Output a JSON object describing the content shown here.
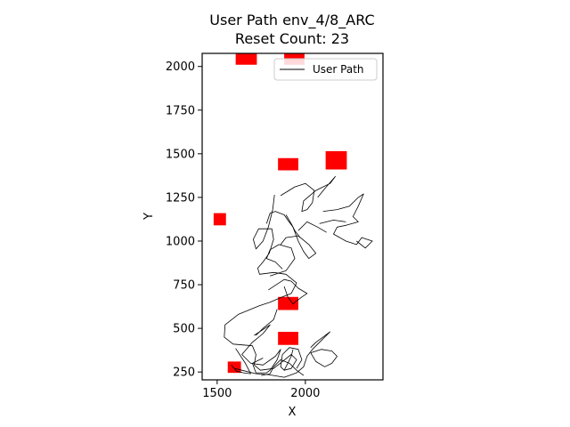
{
  "chart_data": {
    "type": "line",
    "title": "User Path env_4/8_ARC",
    "subtitle": "Reset Count: 23",
    "xlabel": "X",
    "ylabel": "Y",
    "xlim": [
      1415,
      2440
    ],
    "ylim": [
      205,
      2075
    ],
    "xticks": [
      1500,
      2000
    ],
    "yticks": [
      250,
      500,
      750,
      1000,
      1250,
      1500,
      1750,
      2000
    ],
    "grid": false,
    "legend": {
      "placement": "top-right",
      "entries": [
        {
          "label": "User Path",
          "color": "#000000"
        }
      ]
    },
    "obstacles_color": "#ff0000",
    "obstacles": [
      {
        "x": 1480,
        "y": 1090,
        "w": 70,
        "h": 70
      },
      {
        "x": 1560,
        "y": 245,
        "w": 75,
        "h": 65
      },
      {
        "x": 1605,
        "y": 2010,
        "w": 120,
        "h": 70
      },
      {
        "x": 1845,
        "y": 1405,
        "w": 115,
        "h": 70
      },
      {
        "x": 1845,
        "y": 605,
        "w": 115,
        "h": 75
      },
      {
        "x": 1845,
        "y": 405,
        "w": 115,
        "h": 75
      },
      {
        "x": 1880,
        "y": 2010,
        "w": 115,
        "h": 70
      },
      {
        "x": 2115,
        "y": 1410,
        "w": 120,
        "h": 105
      }
    ],
    "series": [
      {
        "name": "User Path",
        "color": "#000000",
        "segments": [
          [
            [
              1825,
              1265
            ],
            [
              1815,
              1180
            ],
            [
              1790,
              1080
            ],
            [
              1760,
              1000
            ],
            [
              1720,
              955
            ],
            [
              1705,
              1010
            ],
            [
              1735,
              1070
            ],
            [
              1810,
              1070
            ],
            [
              1820,
              1010
            ],
            [
              1795,
              930
            ],
            [
              1760,
              880
            ],
            [
              1730,
              845
            ],
            [
              1740,
              810
            ],
            [
              1820,
              820
            ],
            [
              1890,
              810
            ],
            [
              1950,
              760
            ],
            [
              1920,
              700
            ],
            [
              1870,
              680
            ],
            [
              1800,
              650
            ],
            [
              1740,
              630
            ],
            [
              1620,
              580
            ],
            [
              1545,
              520
            ],
            [
              1540,
              450
            ],
            [
              1590,
              410
            ],
            [
              1700,
              400
            ],
            [
              1720,
              350
            ],
            [
              1710,
              290
            ],
            [
              1745,
              260
            ],
            [
              1820,
              270
            ],
            [
              1870,
              310
            ],
            [
              1920,
              350
            ],
            [
              1950,
              320
            ],
            [
              1920,
              270
            ],
            [
              1880,
              260
            ],
            [
              1860,
              280
            ],
            [
              1870,
              350
            ],
            [
              1910,
              390
            ],
            [
              1960,
              380
            ],
            [
              1980,
              320
            ],
            [
              1950,
              270
            ]
          ],
          [
            [
              1605,
              385
            ],
            [
              1660,
              300
            ],
            [
              1690,
              240
            ],
            [
              1650,
              245
            ],
            [
              1610,
              255
            ],
            [
              1580,
              290
            ]
          ],
          [
            [
              1710,
              460
            ],
            [
              1800,
              520
            ],
            [
              1760,
              470
            ],
            [
              1700,
              420
            ],
            [
              1640,
              350
            ],
            [
              1690,
              300
            ],
            [
              1760,
              290
            ],
            [
              1830,
              340
            ],
            [
              1860,
              380
            ],
            [
              1840,
              320
            ],
            [
              1800,
              260
            ],
            [
              1780,
              245
            ],
            [
              1720,
              245
            ],
            [
              1700,
              300
            ],
            [
              1760,
              330
            ]
          ],
          [
            [
              1840,
              610
            ],
            [
              1820,
              550
            ],
            [
              1760,
              500
            ],
            [
              1720,
              460
            ]
          ],
          [
            [
              1800,
              800
            ],
            [
              1890,
              830
            ],
            [
              1940,
              900
            ],
            [
              1920,
              960
            ],
            [
              1850,
              980
            ],
            [
              1800,
              950
            ],
            [
              1780,
              900
            ],
            [
              1830,
              880
            ],
            [
              1870,
              840
            ]
          ],
          [
            [
              1860,
              980
            ],
            [
              1890,
              1020
            ],
            [
              1960,
              1030
            ],
            [
              2020,
              980
            ],
            [
              2060,
              930
            ],
            [
              2020,
              900
            ],
            [
              1990,
              940
            ],
            [
              1960,
              1000
            ],
            [
              1930,
              1080
            ],
            [
              1900,
              1120
            ],
            [
              1880,
              1150
            ],
            [
              1830,
              1170
            ],
            [
              1800,
              1160
            ],
            [
              1780,
              1100
            ]
          ],
          [
            [
              1890,
              1150
            ],
            [
              1920,
              1100
            ],
            [
              1940,
              1060
            ],
            [
              1970,
              1020
            ]
          ],
          [
            [
              1790,
              720
            ],
            [
              1850,
              760
            ],
            [
              1880,
              780
            ],
            [
              1920,
              770
            ],
            [
              1960,
              730
            ],
            [
              2010,
              700
            ],
            [
              1980,
              680
            ],
            [
              1930,
              640
            ],
            [
              1900,
              680
            ],
            [
              1880,
              740
            ]
          ],
          [
            [
              1860,
              1260
            ],
            [
              1940,
              1310
            ],
            [
              2000,
              1330
            ],
            [
              2050,
              1290
            ],
            [
              2040,
              1220
            ],
            [
              2010,
              1180
            ],
            [
              1980,
              1170
            ],
            [
              1990,
              1230
            ],
            [
              2060,
              1290
            ],
            [
              2100,
              1310
            ],
            [
              2140,
              1330
            ],
            [
              2170,
              1370
            ],
            [
              2110,
              1300
            ],
            [
              2070,
              1250
            ]
          ],
          [
            [
              2100,
              1170
            ],
            [
              2180,
              1180
            ],
            [
              2250,
              1200
            ],
            [
              2300,
              1250
            ],
            [
              2330,
              1270
            ],
            [
              2300,
              1200
            ],
            [
              2270,
              1140
            ],
            [
              2300,
              1110
            ],
            [
              2230,
              1090
            ],
            [
              2180,
              1080
            ],
            [
              2160,
              1040
            ],
            [
              2230,
              1000
            ],
            [
              2290,
              980
            ],
            [
              2320,
              1020
            ],
            [
              2380,
              1000
            ],
            [
              2340,
              960
            ],
            [
              2290,
              1000
            ]
          ],
          [
            [
              2080,
              1100
            ],
            [
              2160,
              1120
            ],
            [
              2230,
              1110
            ]
          ],
          [
            [
              1960,
              1060
            ],
            [
              2010,
              1110
            ],
            [
              2070,
              1080
            ],
            [
              2120,
              1050
            ]
          ],
          [
            [
              1600,
              270
            ],
            [
              1640,
              260
            ],
            [
              1720,
              240
            ],
            [
              1790,
              235
            ],
            [
              1880,
              220
            ],
            [
              1950,
              245
            ],
            [
              1990,
              280
            ],
            [
              2010,
              340
            ],
            [
              2040,
              380
            ],
            [
              2080,
              420
            ],
            [
              2140,
              480
            ],
            [
              2100,
              450
            ],
            [
              2060,
              420
            ],
            [
              2030,
              390
            ]
          ],
          [
            [
              2030,
              360
            ],
            [
              2090,
              380
            ],
            [
              2150,
              370
            ],
            [
              2180,
              340
            ],
            [
              2150,
              300
            ],
            [
              2110,
              280
            ],
            [
              2060,
              310
            ],
            [
              2030,
              360
            ]
          ],
          [
            [
              1750,
              230
            ],
            [
              1800,
              240
            ],
            [
              1820,
              280
            ],
            [
              1860,
              320
            ],
            [
              1910,
              300
            ],
            [
              1950,
              260
            ],
            [
              1990,
              230
            ]
          ],
          [
            [
              1880,
              260
            ],
            [
              1900,
              300
            ],
            [
              1920,
              340
            ],
            [
              1930,
              380
            ]
          ]
        ]
      }
    ]
  }
}
